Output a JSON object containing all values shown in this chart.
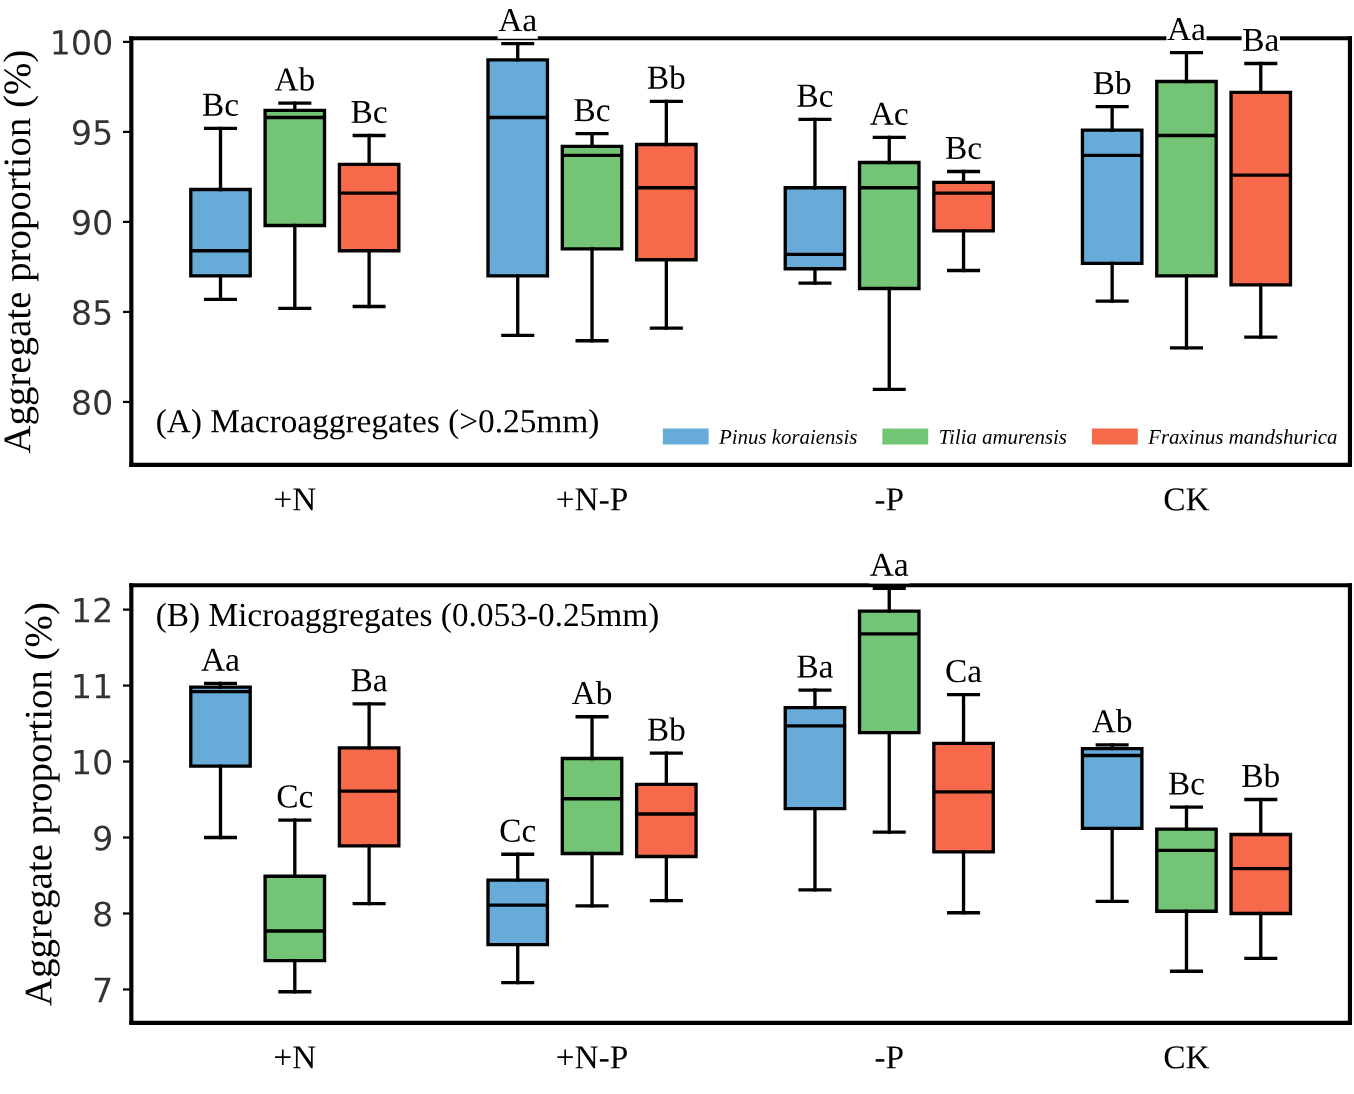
{
  "chart_data": [
    {
      "type": "box",
      "title": "(A) Macroaggregates (>0.25mm)",
      "ylabel": "Aggregate proportion (%)",
      "categories": [
        "+N",
        "+N-P",
        "-P",
        "CK"
      ],
      "ylim": [
        76.5,
        100.2
      ],
      "yticks": [
        80,
        85,
        90,
        95,
        100
      ],
      "legend": "bottom right",
      "grid": false,
      "series": [
        {
          "name": "Pinus koraiensis",
          "color": "#67abd9",
          "boxes": [
            {
              "low": 85.7,
              "q1": 87.0,
              "median": 88.4,
              "q3": 91.8,
              "high": 95.2
            },
            {
              "low": 83.7,
              "q1": 87.0,
              "median": 95.8,
              "q3": 99.0,
              "high": 99.9
            },
            {
              "low": 86.6,
              "q1": 87.4,
              "median": 88.2,
              "q3": 91.9,
              "high": 95.7
            },
            {
              "low": 85.6,
              "q1": 87.7,
              "median": 93.7,
              "q3": 95.1,
              "high": 96.4
            }
          ]
        },
        {
          "name": "Tilia amurensis",
          "color": "#74c476",
          "boxes": [
            {
              "low": 85.2,
              "q1": 89.8,
              "median": 95.8,
              "q3": 96.2,
              "high": 96.6
            },
            {
              "low": 83.4,
              "q1": 88.5,
              "median": 93.7,
              "q3": 94.2,
              "high": 94.9
            },
            {
              "low": 80.7,
              "q1": 86.3,
              "median": 91.9,
              "q3": 93.3,
              "high": 94.7
            },
            {
              "low": 83.0,
              "q1": 87.0,
              "median": 94.8,
              "q3": 97.8,
              "high": 99.4
            }
          ]
        },
        {
          "name": "Fraxinus mandshurica",
          "color": "#f7694b",
          "boxes": [
            {
              "low": 85.3,
              "q1": 88.4,
              "median": 91.6,
              "q3": 93.2,
              "high": 94.8
            },
            {
              "low": 84.1,
              "q1": 87.9,
              "median": 91.9,
              "q3": 94.3,
              "high": 96.7
            },
            {
              "low": 87.3,
              "q1": 89.5,
              "median": 91.6,
              "q3": 92.2,
              "high": 92.8
            },
            {
              "low": 83.6,
              "q1": 86.5,
              "median": 92.6,
              "q3": 97.2,
              "high": 98.8
            }
          ]
        }
      ],
      "annotations": [
        "Bc",
        "Ab",
        "Bc",
        "Aa",
        "Bc",
        "Bb",
        "Bc",
        "Ac",
        "Bc",
        "Bb",
        "Aa",
        "Ba"
      ]
    },
    {
      "type": "box",
      "title": "(B) Microaggregates (0.053-0.25mm)",
      "ylabel": "Aggregate proportion (%)",
      "categories": [
        "+N",
        "+N-P",
        "-P",
        "CK"
      ],
      "ylim": [
        6.56,
        12.32
      ],
      "yticks": [
        7,
        8,
        9,
        10,
        11,
        12
      ],
      "grid": false,
      "series": [
        {
          "color": "#67abd9",
          "boxes": [
            {
              "low": 9.0,
              "q1": 9.94,
              "median": 10.92,
              "q3": 10.98,
              "high": 11.03
            },
            {
              "low": 7.09,
              "q1": 7.59,
              "median": 8.11,
              "q3": 8.44,
              "high": 8.78
            },
            {
              "low": 8.31,
              "q1": 9.38,
              "median": 10.47,
              "q3": 10.71,
              "high": 10.94
            },
            {
              "low": 8.16,
              "q1": 9.12,
              "median": 10.08,
              "q3": 10.17,
              "high": 10.22
            }
          ]
        },
        {
          "color": "#74c476",
          "boxes": [
            {
              "low": 6.97,
              "q1": 7.38,
              "median": 7.77,
              "q3": 8.49,
              "high": 9.23
            },
            {
              "low": 8.1,
              "q1": 8.79,
              "median": 9.51,
              "q3": 10.04,
              "high": 10.59
            },
            {
              "low": 9.07,
              "q1": 10.38,
              "median": 11.68,
              "q3": 11.98,
              "high": 12.28
            },
            {
              "low": 7.24,
              "q1": 8.03,
              "median": 8.83,
              "q3": 9.11,
              "high": 9.4
            }
          ]
        },
        {
          "color": "#f7694b",
          "boxes": [
            {
              "low": 8.13,
              "q1": 8.89,
              "median": 9.61,
              "q3": 10.18,
              "high": 10.76
            },
            {
              "low": 8.17,
              "q1": 8.75,
              "median": 9.31,
              "q3": 9.7,
              "high": 10.11
            },
            {
              "low": 8.01,
              "q1": 8.81,
              "median": 9.6,
              "q3": 10.24,
              "high": 10.88
            },
            {
              "low": 7.41,
              "q1": 8.0,
              "median": 8.59,
              "q3": 9.04,
              "high": 9.5
            }
          ]
        }
      ],
      "annotations": [
        "Aa",
        "Cc",
        "Ba",
        "Cc",
        "Ab",
        "Bb",
        "Ba",
        "Aa",
        "Ca",
        "Ab",
        "Bc",
        "Bb"
      ]
    }
  ]
}
